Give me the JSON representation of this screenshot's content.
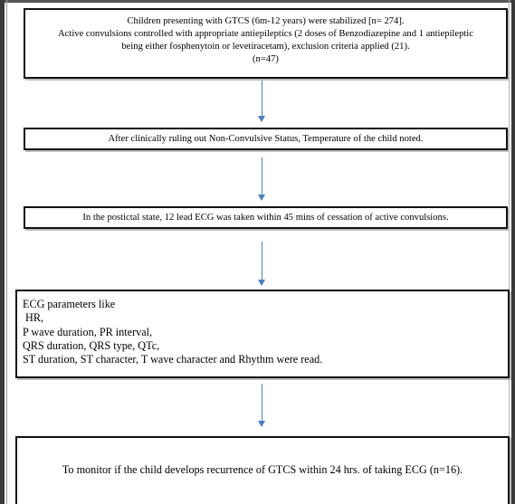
{
  "flowchart": {
    "box1": {
      "line1": "Children presenting with GTCS (6m-12 years) were stabilized [n= 274].",
      "line2": "Active convulsions controlled with appropriate antiepileptics (2 doses of Benzodiazepine and 1 antiepileptic",
      "line3": "being either fosphenytoin or levetiracetam), exclusion criteria applied (21).",
      "line4": "(n=47)"
    },
    "box2": {
      "text": "After clinically ruling out Non-Convulsive Status, Temperature of the child noted."
    },
    "box3": {
      "text": "In the postictal state, 12 lead ECG was taken within 45 mins of cessation of active convulsions."
    },
    "box4": {
      "lines": [
        "ECG parameters like",
        " HR,",
        "P wave duration, PR interval,",
        "QRS duration, QRS type, QTc,",
        "ST duration, ST character, T wave character and Rhythm were read."
      ]
    },
    "box5": {
      "text": "To monitor if the child develops recurrence of GTCS within 24 hrs. of taking ECG (n=16)."
    }
  },
  "colors": {
    "arrow": "#4f7ec0",
    "box_border": "#111111"
  }
}
